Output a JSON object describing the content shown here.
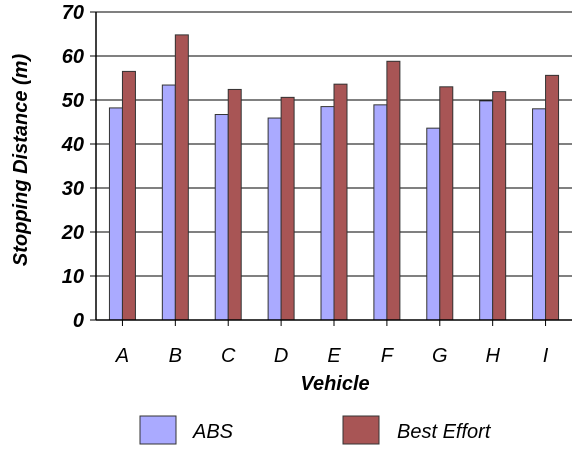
{
  "chart_data": {
    "type": "bar",
    "title": "",
    "xlabel": "Vehicle",
    "ylabel": "Stopping Distance (m)",
    "ylim": [
      0,
      70
    ],
    "yticks": [
      0,
      10,
      20,
      30,
      40,
      50,
      60,
      70
    ],
    "grid": true,
    "legend_placement": "bottom",
    "categories": [
      "A",
      "B",
      "C",
      "D",
      "E",
      "F",
      "G",
      "H",
      "I"
    ],
    "series": [
      {
        "name": "ABS",
        "color": "#aaaaff",
        "values": [
          48.2,
          53.4,
          46.7,
          45.9,
          48.5,
          48.9,
          43.6,
          49.8,
          48.0
        ]
      },
      {
        "name": "Best Effort",
        "color": "#a85555",
        "values": [
          56.5,
          64.8,
          52.4,
          50.6,
          53.6,
          58.8,
          53.0,
          51.9,
          55.6
        ]
      }
    ]
  }
}
